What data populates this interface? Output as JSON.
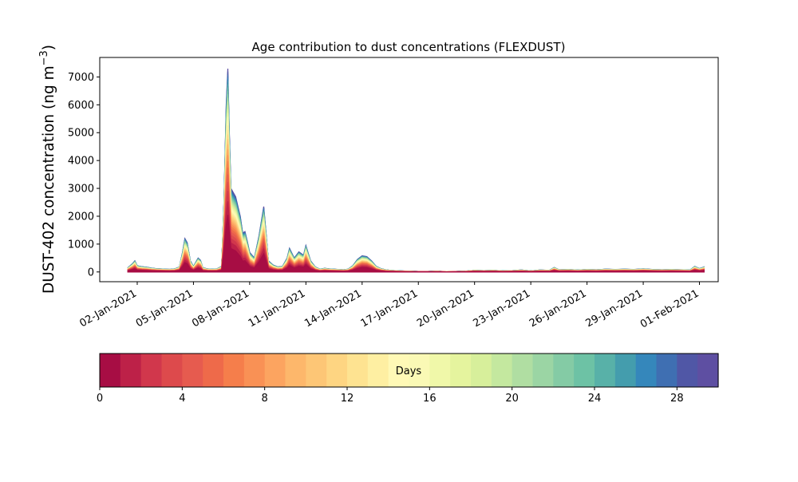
{
  "chart_data": {
    "type": "area",
    "title": "Age contribution to dust concentrations (FLEXDUST)",
    "ylabel_main": "DUST-402 concentration (ng m",
    "ylabel_exp": "−3",
    "ylabel_close": ")",
    "ylim": [
      -350,
      7700
    ],
    "yticks": [
      0,
      1000,
      2000,
      3000,
      4000,
      5000,
      6000,
      7000
    ],
    "x_range": [
      "2020-12-31",
      "2021-02-02"
    ],
    "xticks": [
      {
        "date": "2021-01-02",
        "label": "02-Jan-2021"
      },
      {
        "date": "2021-01-05",
        "label": "05-Jan-2021"
      },
      {
        "date": "2021-01-08",
        "label": "08-Jan-2021"
      },
      {
        "date": "2021-01-11",
        "label": "11-Jan-2021"
      },
      {
        "date": "2021-01-14",
        "label": "14-Jan-2021"
      },
      {
        "date": "2021-01-17",
        "label": "17-Jan-2021"
      },
      {
        "date": "2021-01-20",
        "label": "20-Jan-2021"
      },
      {
        "date": "2021-01-23",
        "label": "23-Jan-2021"
      },
      {
        "date": "2021-01-26",
        "label": "26-Jan-2021"
      },
      {
        "date": "2021-01-29",
        "label": "29-Jan-2021"
      },
      {
        "date": "2021-02-01",
        "label": "01-Feb-2021"
      }
    ],
    "total_series": [
      [
        "2021-01-01 12:00",
        150
      ],
      [
        "2021-01-01 18:00",
        300
      ],
      [
        "2021-01-01 21:00",
        400
      ],
      [
        "2021-01-02 00:00",
        220
      ],
      [
        "2021-01-02 06:00",
        190
      ],
      [
        "2021-01-02 12:00",
        170
      ],
      [
        "2021-01-02 18:00",
        140
      ],
      [
        "2021-01-03 00:00",
        120
      ],
      [
        "2021-01-03 06:00",
        110
      ],
      [
        "2021-01-03 12:00",
        100
      ],
      [
        "2021-01-03 18:00",
        95
      ],
      [
        "2021-01-04 00:00",
        110
      ],
      [
        "2021-01-04 06:00",
        180
      ],
      [
        "2021-01-04 10:00",
        700
      ],
      [
        "2021-01-04 13:00",
        1200
      ],
      [
        "2021-01-04 16:00",
        1050
      ],
      [
        "2021-01-04 20:00",
        400
      ],
      [
        "2021-01-05 00:00",
        200
      ],
      [
        "2021-01-05 06:00",
        500
      ],
      [
        "2021-01-05 09:00",
        420
      ],
      [
        "2021-01-05 12:00",
        150
      ],
      [
        "2021-01-05 18:00",
        110
      ],
      [
        "2021-01-06 00:00",
        100
      ],
      [
        "2021-01-06 06:00",
        110
      ],
      [
        "2021-01-06 12:00",
        200
      ],
      [
        "2021-01-06 15:00",
        2500
      ],
      [
        "2021-01-06 18:00",
        6000
      ],
      [
        "2021-01-06 20:00",
        7300
      ],
      [
        "2021-01-06 22:00",
        5000
      ],
      [
        "2021-01-07 00:00",
        3000
      ],
      [
        "2021-01-07 06:00",
        2700
      ],
      [
        "2021-01-07 12:00",
        2000
      ],
      [
        "2021-01-07 15:00",
        1400
      ],
      [
        "2021-01-07 18:00",
        1450
      ],
      [
        "2021-01-07 21:00",
        1100
      ],
      [
        "2021-01-08 00:00",
        700
      ],
      [
        "2021-01-08 06:00",
        500
      ],
      [
        "2021-01-08 12:00",
        1300
      ],
      [
        "2021-01-08 18:00",
        2350
      ],
      [
        "2021-01-08 21:00",
        1400
      ],
      [
        "2021-01-09 00:00",
        400
      ],
      [
        "2021-01-09 06:00",
        250
      ],
      [
        "2021-01-09 12:00",
        180
      ],
      [
        "2021-01-09 18:00",
        200
      ],
      [
        "2021-01-10 00:00",
        500
      ],
      [
        "2021-01-10 03:00",
        850
      ],
      [
        "2021-01-10 09:00",
        500
      ],
      [
        "2021-01-10 15:00",
        720
      ],
      [
        "2021-01-10 21:00",
        600
      ],
      [
        "2021-01-11 00:00",
        950
      ],
      [
        "2021-01-11 06:00",
        400
      ],
      [
        "2021-01-11 12:00",
        180
      ],
      [
        "2021-01-11 18:00",
        100
      ],
      [
        "2021-01-12 00:00",
        130
      ],
      [
        "2021-01-12 06:00",
        110
      ],
      [
        "2021-01-12 12:00",
        100
      ],
      [
        "2021-01-12 18:00",
        90
      ],
      [
        "2021-01-13 00:00",
        80
      ],
      [
        "2021-01-13 06:00",
        100
      ],
      [
        "2021-01-13 12:00",
        220
      ],
      [
        "2021-01-13 18:00",
        450
      ],
      [
        "2021-01-14 00:00",
        580
      ],
      [
        "2021-01-14 06:00",
        550
      ],
      [
        "2021-01-14 12:00",
        400
      ],
      [
        "2021-01-14 18:00",
        200
      ],
      [
        "2021-01-15 00:00",
        120
      ],
      [
        "2021-01-15 06:00",
        80
      ],
      [
        "2021-01-15 12:00",
        60
      ],
      [
        "2021-01-16 00:00",
        40
      ],
      [
        "2021-01-16 12:00",
        30
      ],
      [
        "2021-01-17 00:00",
        20
      ],
      [
        "2021-01-17 12:00",
        20
      ],
      [
        "2021-01-18 00:00",
        30
      ],
      [
        "2021-01-18 12:00",
        10
      ],
      [
        "2021-01-19 00:00",
        20
      ],
      [
        "2021-01-19 12:00",
        30
      ],
      [
        "2021-01-20 00:00",
        60
      ],
      [
        "2021-01-20 12:00",
        50
      ],
      [
        "2021-01-21 00:00",
        60
      ],
      [
        "2021-01-21 12:00",
        40
      ],
      [
        "2021-01-22 00:00",
        50
      ],
      [
        "2021-01-22 12:00",
        70
      ],
      [
        "2021-01-23 00:00",
        40
      ],
      [
        "2021-01-23 12:00",
        70
      ],
      [
        "2021-01-24 00:00",
        60
      ],
      [
        "2021-01-24 06:00",
        160
      ],
      [
        "2021-01-24 12:00",
        80
      ],
      [
        "2021-01-25 00:00",
        90
      ],
      [
        "2021-01-25 12:00",
        70
      ],
      [
        "2021-01-26 00:00",
        90
      ],
      [
        "2021-01-26 12:00",
        80
      ],
      [
        "2021-01-27 00:00",
        100
      ],
      [
        "2021-01-27 12:00",
        90
      ],
      [
        "2021-01-28 00:00",
        100
      ],
      [
        "2021-01-28 12:00",
        90
      ],
      [
        "2021-01-29 00:00",
        110
      ],
      [
        "2021-01-29 12:00",
        90
      ],
      [
        "2021-01-30 00:00",
        80
      ],
      [
        "2021-01-30 12:00",
        90
      ],
      [
        "2021-01-31 00:00",
        80
      ],
      [
        "2021-01-31 12:00",
        70
      ],
      [
        "2021-01-31 18:00",
        200
      ],
      [
        "2021-02-01 00:00",
        120
      ],
      [
        "2021-02-01 06:00",
        180
      ]
    ],
    "colormap": "Spectral",
    "colorbar": {
      "label": "Days",
      "range": [
        0,
        30
      ],
      "ticks": [
        0,
        4,
        8,
        12,
        16,
        20,
        24,
        28
      ],
      "colors": [
        "#a70d44",
        "#bd2148",
        "#d1374c",
        "#dd4a4c",
        "#e65b4f",
        "#ee6a4a",
        "#f57e4b",
        "#f99155",
        "#fca460",
        "#fdb76b",
        "#fdc676",
        "#fed582",
        "#fee391",
        "#feefa2",
        "#fff9b6",
        "#faf9b5",
        "#f0f8a9",
        "#e5f49e",
        "#d7ef9b",
        "#c4e89f",
        "#b0dea2",
        "#9bd5a4",
        "#84cba5",
        "#6dc2a5",
        "#58b1a8",
        "#449dad",
        "#3587bb",
        "#3f6fb2",
        "#5057a6",
        "#5e4fa2"
      ]
    }
  }
}
